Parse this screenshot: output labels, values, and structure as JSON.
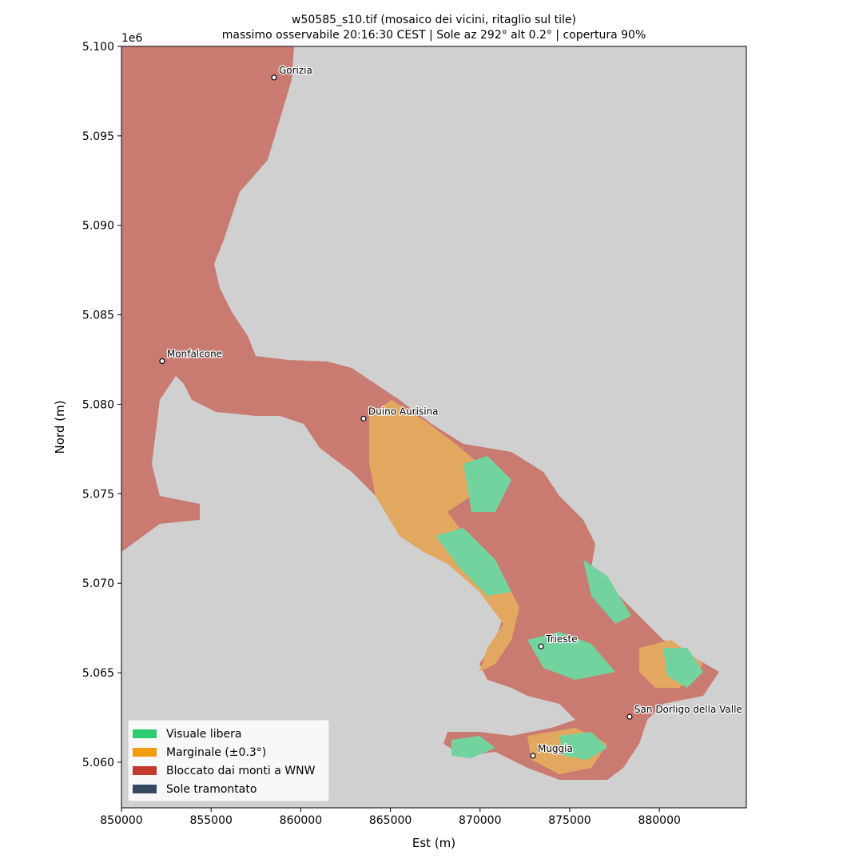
{
  "chart_data": {
    "type": "map",
    "title": "w50585_s10.tif  (mosaico dei vicini, ritaglio sul tile)",
    "subtitle": "massimo osservabile 20:16:30 CEST | Sole az 292° alt 0.2° | copertura 90%",
    "xlabel": "Est (m)",
    "ylabel": "Nord (m)",
    "y_offset_label": "1e6",
    "xlim": [
      850000,
      884850
    ],
    "ylim": [
      5057450,
      5100000
    ],
    "xticks": [
      850000,
      855000,
      860000,
      865000,
      870000,
      875000,
      880000
    ],
    "yticks": [
      {
        "value": 5060000,
        "label": "5.060"
      },
      {
        "value": 5065000,
        "label": "5.065"
      },
      {
        "value": 5070000,
        "label": "5.070"
      },
      {
        "value": 5075000,
        "label": "5.075"
      },
      {
        "value": 5080000,
        "label": "5.080"
      },
      {
        "value": 5085000,
        "label": "5.085"
      },
      {
        "value": 5090000,
        "label": "5.090"
      },
      {
        "value": 5095000,
        "label": "5.095"
      },
      {
        "value": 5100000,
        "label": "5.100"
      }
    ],
    "places": [
      {
        "name": "Gorizia",
        "x": 858510,
        "y": 5098260
      },
      {
        "name": "Monfalcone",
        "x": 852270,
        "y": 5082410
      },
      {
        "name": "Duino Aurisina",
        "x": 863500,
        "y": 5079200
      },
      {
        "name": "Trieste",
        "x": 873400,
        "y": 5066470
      },
      {
        "name": "San Dorligo della Valle",
        "x": 878340,
        "y": 5062540
      },
      {
        "name": "Muggia",
        "x": 872950,
        "y": 5060360
      }
    ],
    "legend": [
      {
        "name": "Visuale libera",
        "color": "#2ecc71"
      },
      {
        "name": "Marginale (±0.3°)",
        "color": "#f39c12"
      },
      {
        "name": "Bloccato dai monti a WNW",
        "color": "#c0392b"
      },
      {
        "name": "Sole tramontato",
        "color": "#34495e"
      }
    ],
    "legend_loc": "lower left"
  }
}
